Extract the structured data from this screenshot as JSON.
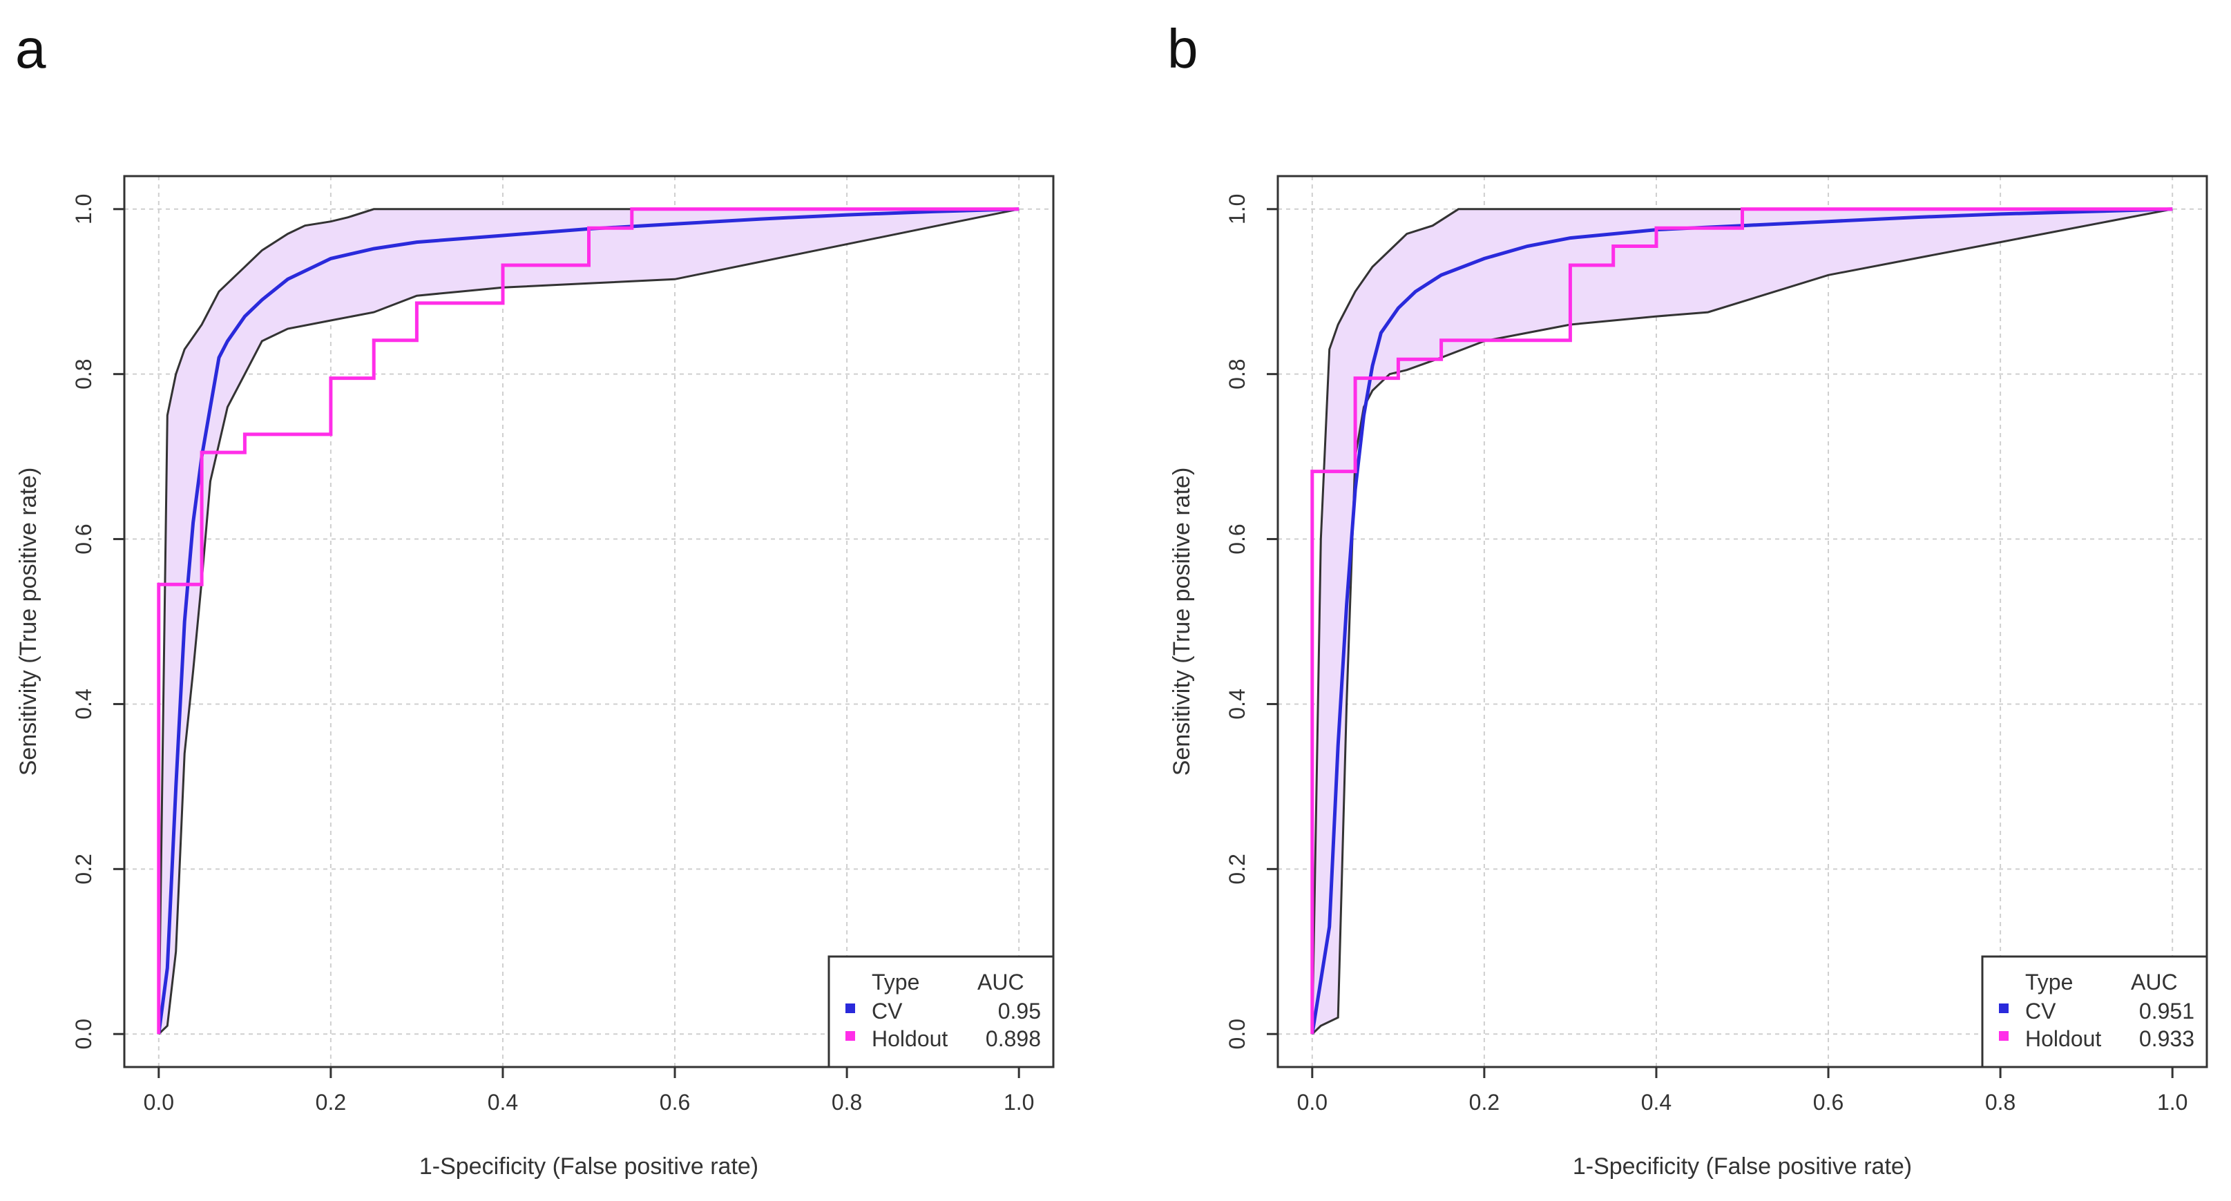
{
  "chart_data": [
    {
      "type": "line",
      "panel_label": "a",
      "xlabel": "1-Specificity (False positive rate)",
      "ylabel": "Sensitivity (True positive rate)",
      "xlim": [
        0,
        1
      ],
      "ylim": [
        0,
        1
      ],
      "xticks": [
        "0.0",
        "0.2",
        "0.4",
        "0.6",
        "0.8",
        "1.0"
      ],
      "yticks": [
        "0.0",
        "0.2",
        "0.4",
        "0.6",
        "0.8",
        "1.0"
      ],
      "grid": true,
      "legend": {
        "position": "bottom-right",
        "header_type": "Type",
        "header_auc": "AUC",
        "entries": [
          {
            "name": "CV",
            "auc": "0.95",
            "color": "#2a2adb"
          },
          {
            "name": "Holdout",
            "auc": "0.898",
            "color": "#ff2ee8"
          }
        ]
      },
      "series": [
        {
          "name": "CV",
          "color": "#2a2adb",
          "x": [
            0,
            0.01,
            0.02,
            0.03,
            0.04,
            0.05,
            0.06,
            0.07,
            0.08,
            0.1,
            0.12,
            0.15,
            0.2,
            0.25,
            0.3,
            0.4,
            0.5,
            0.6,
            0.7,
            0.8,
            0.9,
            1.0
          ],
          "y": [
            0,
            0.08,
            0.3,
            0.5,
            0.62,
            0.7,
            0.76,
            0.82,
            0.84,
            0.87,
            0.89,
            0.915,
            0.94,
            0.952,
            0.96,
            0.968,
            0.976,
            0.982,
            0.988,
            0.993,
            0.997,
            1.0
          ]
        },
        {
          "name": "CV band upper",
          "color": "#333333",
          "x": [
            0,
            0.01,
            0.02,
            0.03,
            0.05,
            0.07,
            0.09,
            0.1,
            0.12,
            0.15,
            0.17,
            0.2,
            0.22,
            0.25,
            0.3,
            0.5,
            1.0
          ],
          "y": [
            0,
            0.75,
            0.8,
            0.83,
            0.86,
            0.9,
            0.92,
            0.93,
            0.95,
            0.97,
            0.98,
            0.985,
            0.99,
            1.0,
            1.0,
            1.0,
            1.0
          ]
        },
        {
          "name": "CV band lower",
          "color": "#333333",
          "x": [
            0,
            0.01,
            0.02,
            0.03,
            0.04,
            0.05,
            0.06,
            0.08,
            0.1,
            0.12,
            0.15,
            0.2,
            0.25,
            0.3,
            0.35,
            0.4,
            0.5,
            0.6,
            1.0
          ],
          "y": [
            0,
            0.01,
            0.1,
            0.34,
            0.44,
            0.55,
            0.67,
            0.76,
            0.8,
            0.84,
            0.855,
            0.865,
            0.875,
            0.895,
            0.9,
            0.905,
            0.91,
            0.915,
            1.0
          ]
        },
        {
          "name": "Holdout",
          "color": "#ff2ee8",
          "x": [
            0,
            0,
            0.05,
            0.05,
            0.1,
            0.1,
            0.2,
            0.2,
            0.25,
            0.25,
            0.3,
            0.3,
            0.4,
            0.4,
            0.5,
            0.5,
            0.55,
            0.55,
            1.0
          ],
          "y": [
            0,
            0.545,
            0.545,
            0.705,
            0.705,
            0.727,
            0.727,
            0.795,
            0.795,
            0.841,
            0.841,
            0.886,
            0.886,
            0.932,
            0.932,
            0.977,
            0.977,
            1.0,
            1.0
          ]
        }
      ]
    },
    {
      "type": "line",
      "panel_label": "b",
      "xlabel": "1-Specificity (False positive rate)",
      "ylabel": "Sensitivity (True positive rate)",
      "xlim": [
        0,
        1
      ],
      "ylim": [
        0,
        1
      ],
      "xticks": [
        "0.0",
        "0.2",
        "0.4",
        "0.6",
        "0.8",
        "1.0"
      ],
      "yticks": [
        "0.0",
        "0.2",
        "0.4",
        "0.6",
        "0.8",
        "1.0"
      ],
      "grid": true,
      "legend": {
        "position": "bottom-right",
        "header_type": "Type",
        "header_auc": "AUC",
        "entries": [
          {
            "name": "CV",
            "auc": "0.951",
            "color": "#2a2adb"
          },
          {
            "name": "Holdout",
            "auc": "0.933",
            "color": "#ff2ee8"
          }
        ]
      },
      "series": [
        {
          "name": "CV",
          "color": "#2a2adb",
          "x": [
            0,
            0.02,
            0.03,
            0.04,
            0.05,
            0.06,
            0.07,
            0.08,
            0.1,
            0.12,
            0.15,
            0.2,
            0.25,
            0.3,
            0.4,
            0.5,
            0.6,
            0.7,
            0.8,
            0.9,
            1.0
          ],
          "y": [
            0,
            0.13,
            0.35,
            0.52,
            0.66,
            0.75,
            0.81,
            0.85,
            0.88,
            0.9,
            0.92,
            0.94,
            0.955,
            0.965,
            0.975,
            0.98,
            0.985,
            0.99,
            0.994,
            0.997,
            1.0
          ]
        },
        {
          "name": "CV band upper",
          "color": "#333333",
          "x": [
            0,
            0.01,
            0.02,
            0.03,
            0.05,
            0.07,
            0.09,
            0.11,
            0.14,
            0.17,
            0.2,
            0.3,
            1.0
          ],
          "y": [
            0,
            0.6,
            0.83,
            0.86,
            0.9,
            0.93,
            0.95,
            0.97,
            0.98,
            1.0,
            1.0,
            1.0,
            1.0
          ]
        },
        {
          "name": "CV band lower",
          "color": "#333333",
          "x": [
            0,
            0.01,
            0.03,
            0.04,
            0.05,
            0.06,
            0.07,
            0.09,
            0.11,
            0.15,
            0.2,
            0.3,
            0.4,
            0.46,
            0.6,
            0.8,
            1.0
          ],
          "y": [
            0,
            0.01,
            0.02,
            0.4,
            0.7,
            0.76,
            0.78,
            0.8,
            0.805,
            0.82,
            0.84,
            0.86,
            0.87,
            0.875,
            0.92,
            0.96,
            1.0
          ]
        },
        {
          "name": "Holdout",
          "color": "#ff2ee8",
          "x": [
            0,
            0,
            0.05,
            0.05,
            0.1,
            0.1,
            0.15,
            0.15,
            0.3,
            0.3,
            0.35,
            0.35,
            0.4,
            0.4,
            0.5,
            0.5,
            1.0
          ],
          "y": [
            0,
            0.682,
            0.682,
            0.795,
            0.795,
            0.818,
            0.818,
            0.841,
            0.841,
            0.932,
            0.932,
            0.955,
            0.955,
            0.977,
            0.977,
            1.0,
            1.0
          ]
        }
      ]
    }
  ]
}
